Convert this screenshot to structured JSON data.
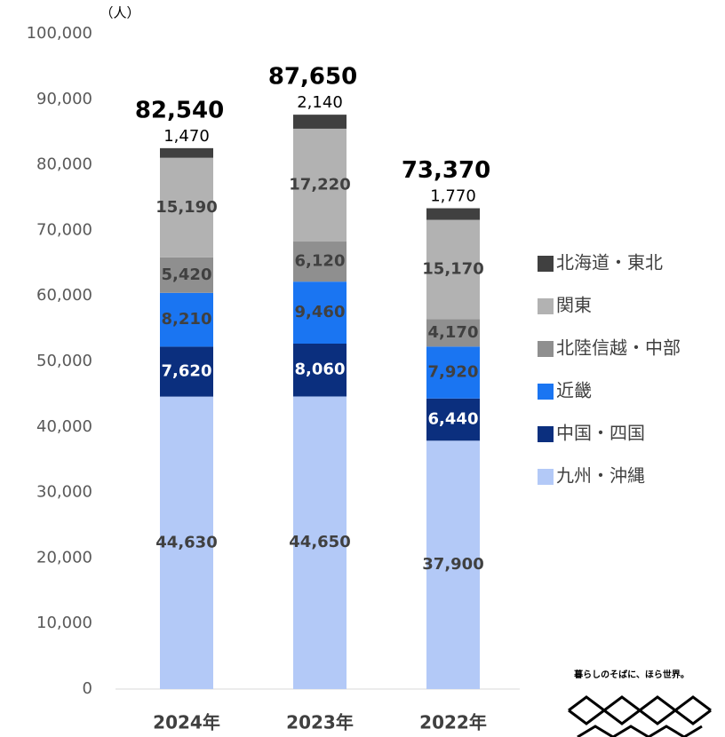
{
  "chart_data": {
    "type": "stacked_bar",
    "y_unit": "（人）",
    "categories": [
      "2024年",
      "2023年",
      "2022年"
    ],
    "series": [
      {
        "name": "九州・沖縄",
        "color": "#b3c9f7",
        "label_color": "#404040",
        "values": [
          44630,
          44650,
          37900
        ],
        "value_labels": [
          "44,630",
          "44,650",
          "37,900"
        ]
      },
      {
        "name": "中国・四国",
        "color": "#0b2f7e",
        "label_color": "#ffffff",
        "values": [
          7620,
          8060,
          6440
        ],
        "value_labels": [
          "7,620",
          "8,060",
          "6,440"
        ]
      },
      {
        "name": "近畿",
        "color": "#1a75f2",
        "label_color": "#404040",
        "values": [
          8210,
          9460,
          7920
        ],
        "value_labels": [
          "8,210",
          "9,460",
          "7,920"
        ]
      },
      {
        "name": "北陸信越・中部",
        "color": "#8f8f8f",
        "label_color": "#404040",
        "values": [
          5420,
          6120,
          4170
        ],
        "value_labels": [
          "5,420",
          "6,120",
          "4,170"
        ]
      },
      {
        "name": "関東",
        "color": "#b2b2b2",
        "label_color": "#404040",
        "values": [
          15190,
          17220,
          15170
        ],
        "value_labels": [
          "15,190",
          "17,220",
          "15,170"
        ]
      },
      {
        "name": "北海道・東北",
        "color": "#404040",
        "label_color": "#000000",
        "label_outside": true,
        "values": [
          1470,
          2140,
          1770
        ],
        "value_labels": [
          "1,470",
          "2,140",
          "1,770"
        ]
      }
    ],
    "totals": [
      82540,
      87650,
      73370
    ],
    "total_labels": [
      "82,540",
      "87,650",
      "73,370"
    ],
    "ylim": [
      0,
      100000
    ],
    "yticks": [
      0,
      {
        "value": 10000,
        "label": "10,000"
      },
      {
        "value": 20000,
        "label": "20,000"
      },
      {
        "value": 30000,
        "label": "30,000"
      },
      {
        "value": 40000,
        "label": "40,000"
      },
      {
        "value": 50000,
        "label": "50,000"
      },
      {
        "value": 60000,
        "label": "60,000"
      },
      {
        "value": 70000,
        "label": "70,000"
      },
      {
        "value": 80000,
        "label": "80,000"
      },
      {
        "value": 90000,
        "label": "90,000"
      },
      {
        "value": 100000,
        "label": "100,000"
      }
    ],
    "grid": false,
    "legend": "right",
    "logo_text": "暮らしのそばに、ほら世界。"
  }
}
